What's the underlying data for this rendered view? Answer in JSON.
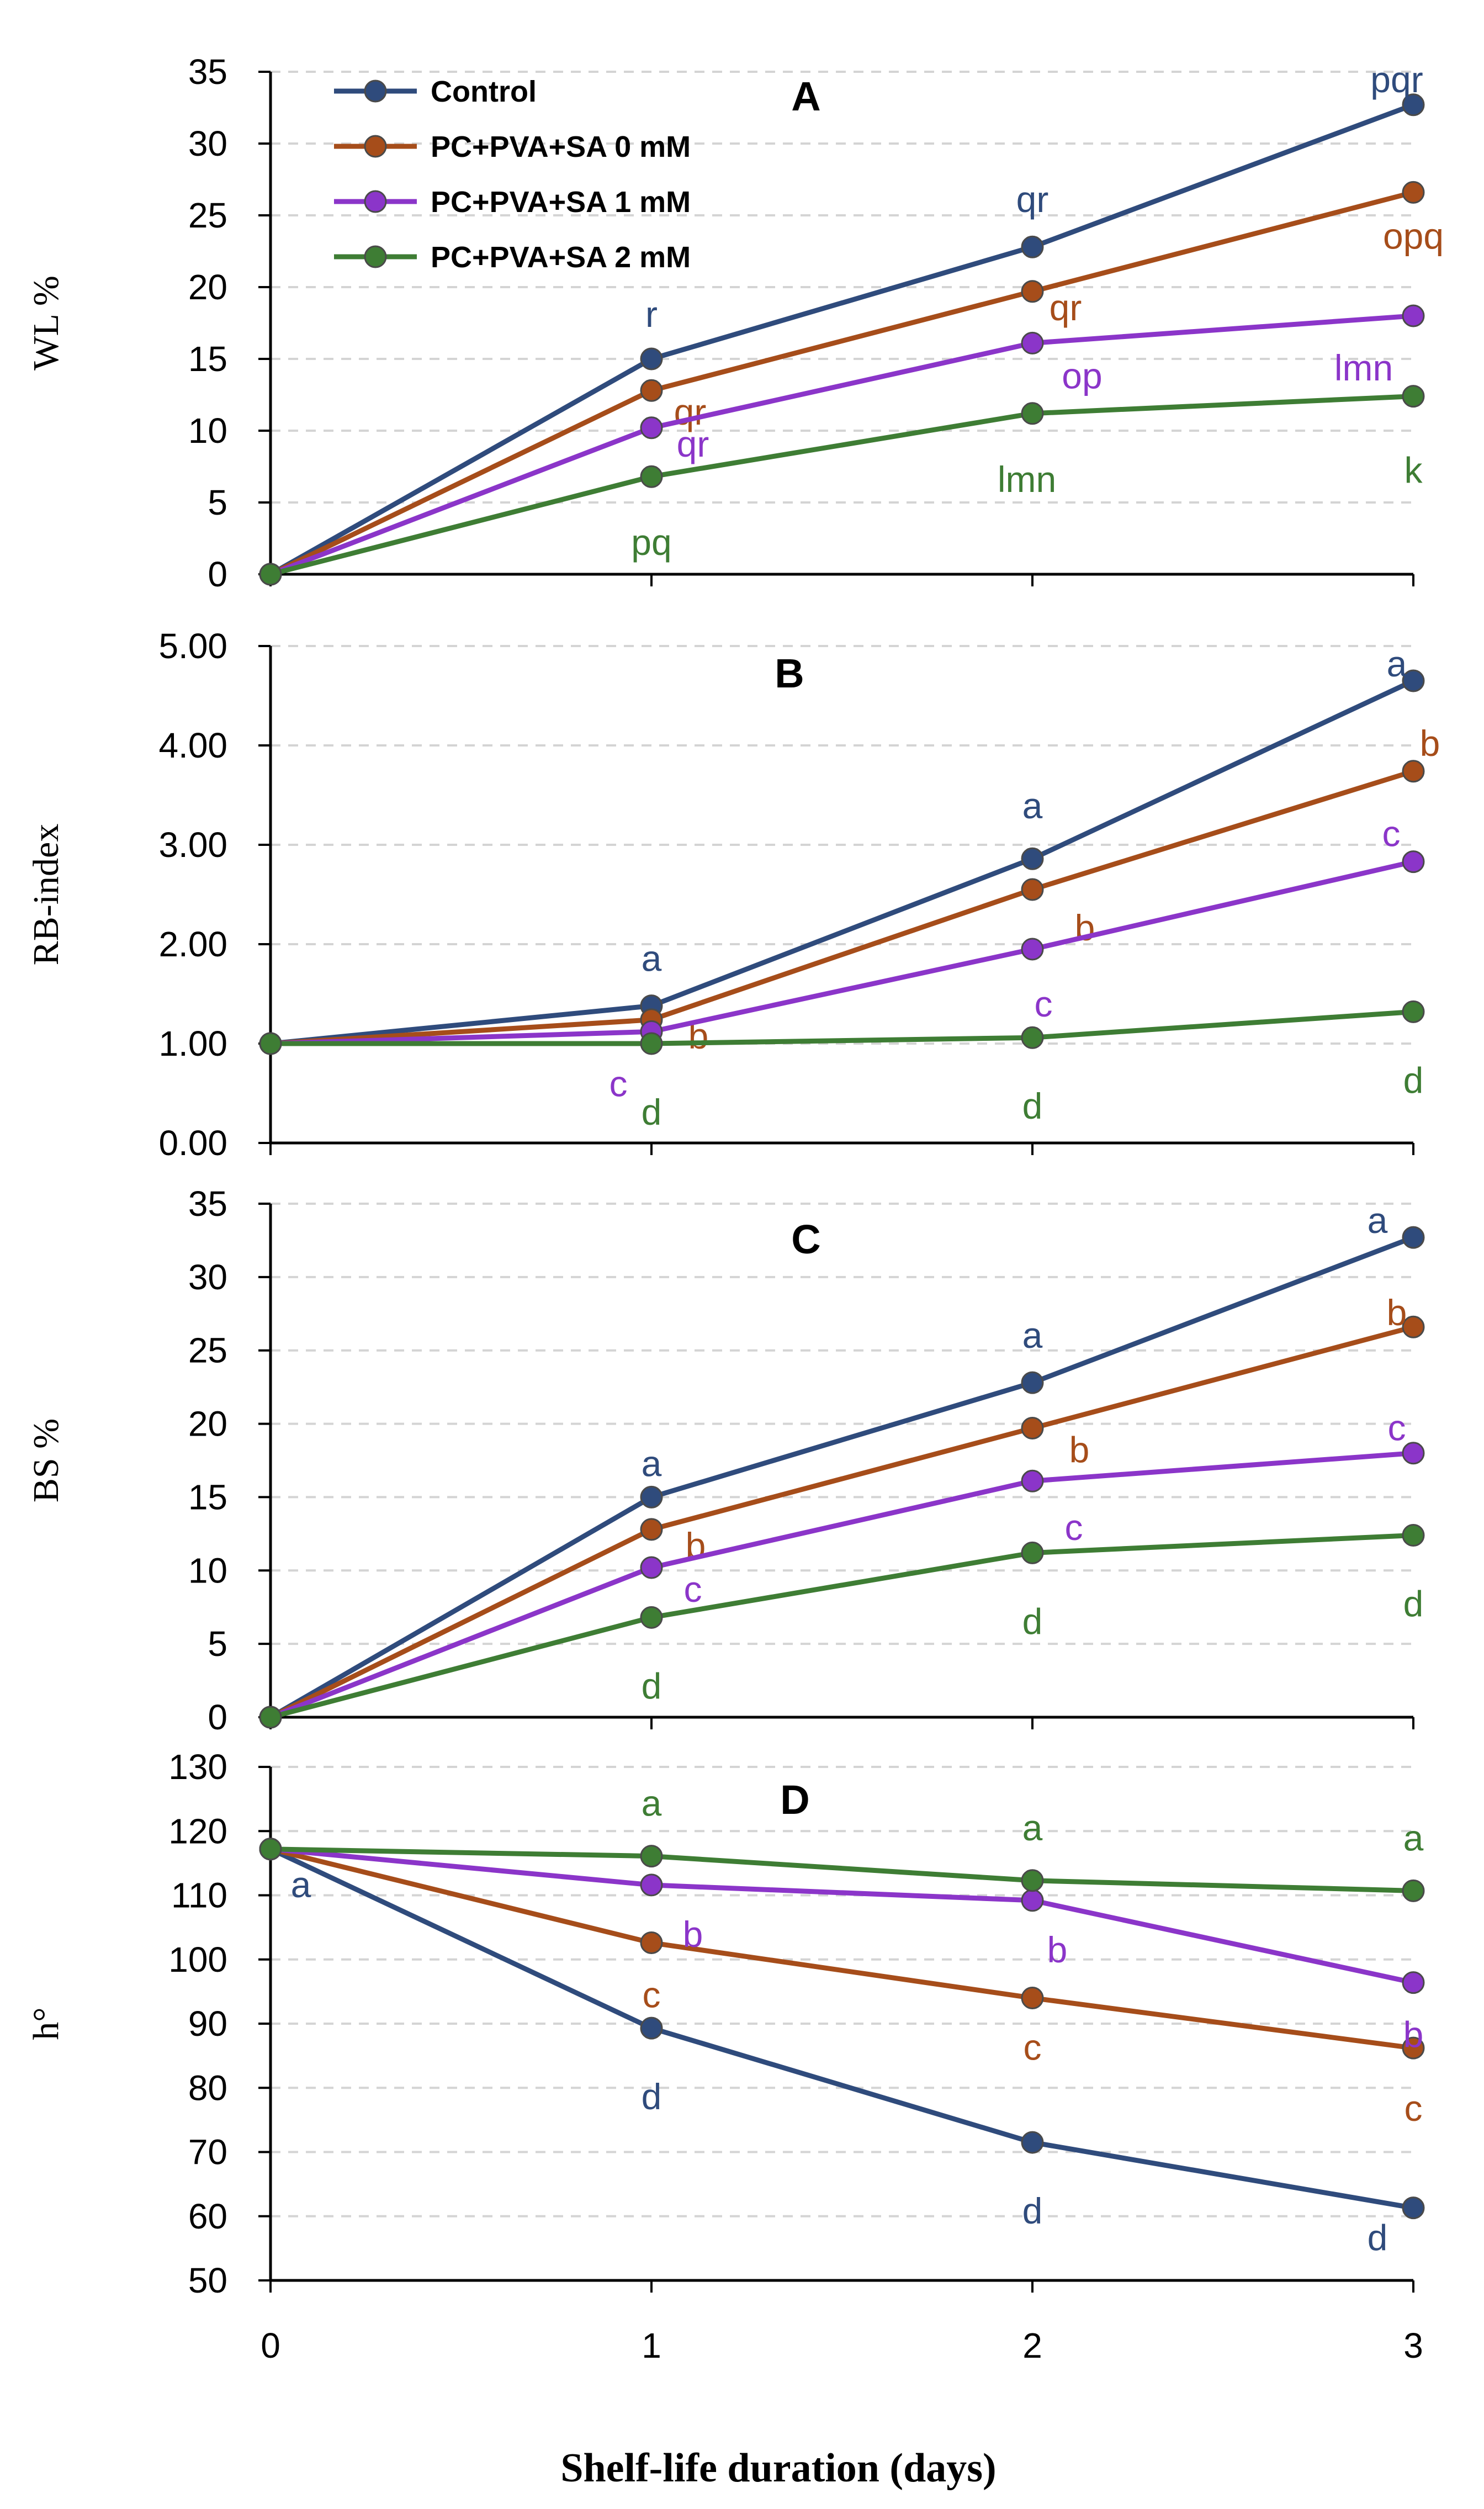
{
  "chart_data": {
    "type": "line",
    "figure_xlabel": "Shelf-life duration (days)",
    "x": [
      0,
      1,
      2,
      3
    ],
    "x_tick_labels": [
      "0",
      "1",
      "2",
      "3"
    ],
    "legend": [
      {
        "label": "Control",
        "color": "#2f4b7c"
      },
      {
        "label": "PC+PVA+SA 0 mM",
        "color": "#a64d1a"
      },
      {
        "label": "PC+PVA+SA 1 mM",
        "color": "#8b35c9"
      },
      {
        "label": "PC+PVA+SA 2 mM",
        "color": "#3e7d34"
      }
    ],
    "panels": [
      {
        "title": "A",
        "ylabel": "WL %",
        "ylim": [
          0,
          35
        ],
        "yticks": [
          0,
          5,
          10,
          15,
          20,
          25,
          30,
          35
        ],
        "ytick_labels": [
          "0",
          "5",
          "10",
          "15",
          "20",
          "25",
          "30",
          "35"
        ],
        "series": [
          {
            "name": "Control",
            "values": [
              0,
              15.0,
              22.8,
              32.7
            ],
            "labels": [
              "",
              "r",
              "qr",
              "pqr"
            ]
          },
          {
            "name": "PC+PVA+SA 0 mM",
            "values": [
              0,
              12.8,
              19.7,
              26.6
            ],
            "labels": [
              "",
              "qr",
              "qr",
              "opq"
            ]
          },
          {
            "name": "PC+PVA+SA 1 mM",
            "values": [
              0,
              10.2,
              16.1,
              18.0
            ],
            "labels": [
              "",
              "qr",
              "op",
              "lmn"
            ]
          },
          {
            "name": "PC+PVA+SA 2 mM",
            "values": [
              0,
              6.8,
              11.2,
              12.4
            ],
            "labels": [
              "",
              "pq",
              "lmn",
              "k"
            ]
          }
        ]
      },
      {
        "title": "B",
        "ylabel": "RB-index",
        "ylim": [
          0,
          5
        ],
        "yticks": [
          0,
          1,
          2,
          3,
          4,
          5
        ],
        "ytick_labels": [
          "0.00",
          "1.00",
          "2.00",
          "3.00",
          "4.00",
          "5.00"
        ],
        "series": [
          {
            "name": "Control",
            "values": [
              1.0,
              1.38,
              2.86,
              4.65
            ],
            "labels": [
              "",
              "a",
              "a",
              "a"
            ]
          },
          {
            "name": "PC+PVA+SA 0 mM",
            "values": [
              1.0,
              1.24,
              2.55,
              3.74
            ],
            "labels": [
              "",
              "b",
              "b",
              "b"
            ]
          },
          {
            "name": "PC+PVA+SA 1 mM",
            "values": [
              1.0,
              1.12,
              1.95,
              2.83
            ],
            "labels": [
              "",
              "c",
              "c",
              "c"
            ]
          },
          {
            "name": "PC+PVA+SA 2 mM",
            "values": [
              1.0,
              1.0,
              1.06,
              1.32
            ],
            "labels": [
              "",
              "d",
              "d",
              "d"
            ]
          }
        ]
      },
      {
        "title": "C",
        "ylabel": "BS %",
        "ylim": [
          0,
          35
        ],
        "yticks": [
          0,
          5,
          10,
          15,
          20,
          25,
          30,
          35
        ],
        "ytick_labels": [
          "0",
          "5",
          "10",
          "15",
          "20",
          "25",
          "30",
          "35"
        ],
        "series": [
          {
            "name": "Control",
            "values": [
              0,
              15.0,
              22.8,
              32.7
            ],
            "labels": [
              "",
              "a",
              "a",
              "a"
            ]
          },
          {
            "name": "PC+PVA+SA 0 mM",
            "values": [
              0,
              12.8,
              19.7,
              26.6
            ],
            "labels": [
              "",
              "b",
              "b",
              "b"
            ]
          },
          {
            "name": "PC+PVA+SA 1 mM",
            "values": [
              0,
              10.2,
              16.1,
              18.0
            ],
            "labels": [
              "",
              "c",
              "c",
              "c"
            ]
          },
          {
            "name": "PC+PVA+SA 2 mM",
            "values": [
              0,
              6.8,
              11.2,
              12.4
            ],
            "labels": [
              "",
              "d",
              "d",
              "d"
            ]
          }
        ]
      },
      {
        "title": "D",
        "ylabel": "h°",
        "ylim": [
          50,
          130
        ],
        "yticks": [
          50,
          60,
          70,
          80,
          90,
          100,
          110,
          120,
          130
        ],
        "ytick_labels": [
          "50",
          "60",
          "70",
          "80",
          "90",
          "100",
          "110",
          "120",
          "130"
        ],
        "series": [
          {
            "name": "Control",
            "values": [
              117.2,
              89.3,
              71.5,
              61.3
            ],
            "labels": [
              "a",
              "d",
              "d",
              "d"
            ]
          },
          {
            "name": "PC+PVA+SA 0 mM",
            "values": [
              117.2,
              102.6,
              94.0,
              86.2
            ],
            "labels": [
              "",
              "c",
              "c",
              "c"
            ]
          },
          {
            "name": "PC+PVA+SA 1 mM",
            "values": [
              117.2,
              111.6,
              109.2,
              96.4
            ],
            "labels": [
              "",
              "b",
              "b",
              "b"
            ]
          },
          {
            "name": "PC+PVA+SA 2 mM",
            "values": [
              117.2,
              116.1,
              112.3,
              110.7
            ],
            "labels": [
              "",
              "a",
              "a",
              "a"
            ]
          }
        ]
      }
    ]
  }
}
